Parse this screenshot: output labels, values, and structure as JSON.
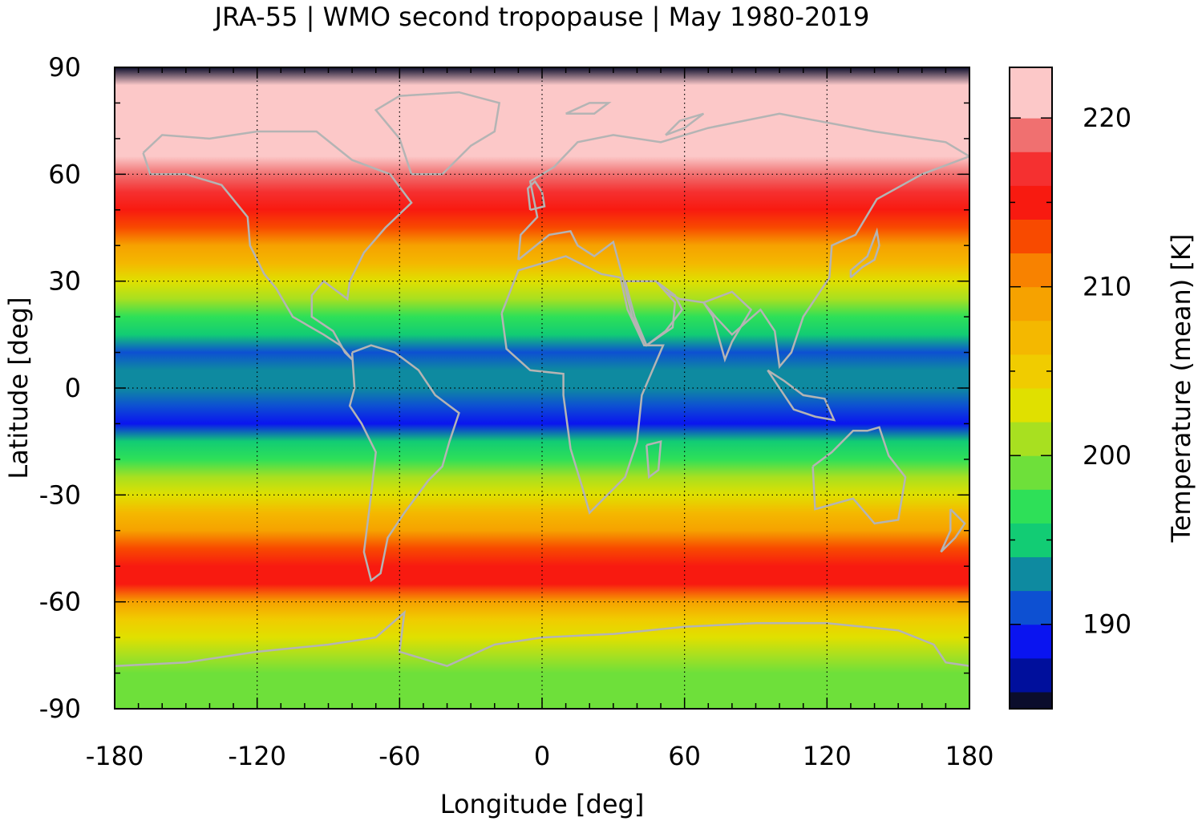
{
  "chart_data": {
    "type": "heatmap",
    "title": "JRA-55 | WMO second tropopause | May 1980-2019",
    "xlabel": "Longitude [deg]",
    "ylabel": "Latitude [deg]",
    "colorbar_label": "Temperature (mean) [K]",
    "xlim": [
      -180,
      180
    ],
    "ylim": [
      -90,
      90
    ],
    "xticks": [
      "-180",
      "-120",
      "-60",
      "0",
      "60",
      "120",
      "180"
    ],
    "yticks": [
      "90",
      "60",
      "30",
      "0",
      "-30",
      "-60",
      "-90"
    ],
    "grid": true,
    "colorbar": {
      "range": [
        185,
        223
      ],
      "ticks": [
        "220",
        "210",
        "200",
        "190"
      ],
      "levels": [
        {
          "min": 185,
          "max": 186,
          "color": "#0b0d2c"
        },
        {
          "min": 186,
          "max": 188,
          "color": "#000f9c"
        },
        {
          "min": 188,
          "max": 190,
          "color": "#0a14f0"
        },
        {
          "min": 190,
          "max": 192,
          "color": "#0d50d2"
        },
        {
          "min": 192,
          "max": 194,
          "color": "#0e8aa0"
        },
        {
          "min": 194,
          "max": 196,
          "color": "#12cc74"
        },
        {
          "min": 196,
          "max": 198,
          "color": "#2ee058"
        },
        {
          "min": 198,
          "max": 200,
          "color": "#6ee03a"
        },
        {
          "min": 200,
          "max": 202,
          "color": "#a8e020"
        },
        {
          "min": 202,
          "max": 204,
          "color": "#e0e000"
        },
        {
          "min": 204,
          "max": 206,
          "color": "#f0cc00"
        },
        {
          "min": 206,
          "max": 208,
          "color": "#f4b800"
        },
        {
          "min": 208,
          "max": 210,
          "color": "#f6a200"
        },
        {
          "min": 210,
          "max": 212,
          "color": "#f88200"
        },
        {
          "min": 212,
          "max": 214,
          "color": "#f84a00"
        },
        {
          "min": 214,
          "max": 216,
          "color": "#f81a10"
        },
        {
          "min": 216,
          "max": 218,
          "color": "#f53030"
        },
        {
          "min": 218,
          "max": 220,
          "color": "#f07070"
        },
        {
          "min": 220,
          "max": 223,
          "color": "#fcc8c8"
        }
      ]
    },
    "zonal_mean_profile": {
      "latitude": [
        90,
        85,
        80,
        75,
        70,
        65,
        60,
        55,
        50,
        45,
        40,
        35,
        30,
        25,
        20,
        15,
        10,
        5,
        0,
        -5,
        -10,
        -15,
        -20,
        -25,
        -30,
        -35,
        -40,
        -45,
        -50,
        -55,
        -60,
        -65,
        -70,
        -75,
        -80,
        -85,
        -90
      ],
      "temperature_K": [
        185,
        221,
        221.5,
        221.5,
        221,
        220,
        218.5,
        217,
        215,
        212,
        209,
        206,
        203,
        200,
        197,
        194,
        191,
        192,
        193,
        191,
        189,
        194,
        197.5,
        200,
        203,
        206,
        209,
        212,
        215,
        214,
        209,
        205,
        202,
        200,
        199.5,
        198.5,
        198
      ]
    },
    "notes": []
  }
}
